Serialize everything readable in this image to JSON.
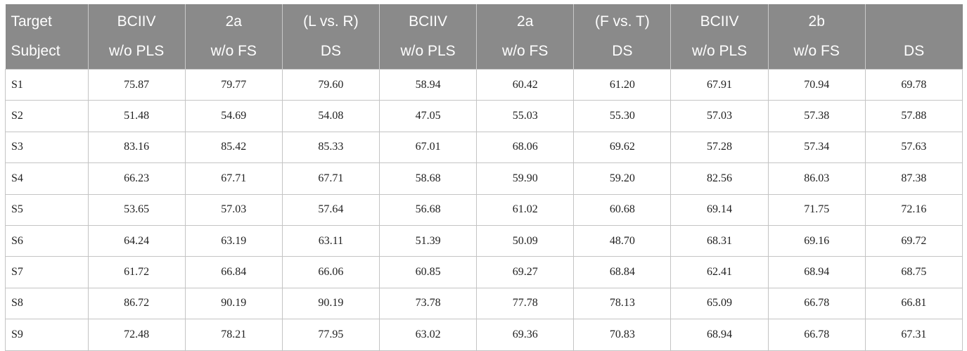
{
  "table": {
    "header_row1": [
      "Target",
      "BCIIV",
      "2a",
      "(L vs. R)",
      "BCIIV",
      "2a",
      "(F vs. T)",
      "BCIIV",
      "2b",
      ""
    ],
    "header_row2": [
      "Subject",
      "w/o PLS",
      "w/o FS",
      "DS",
      "w/o PLS",
      "w/o FS",
      "DS",
      "w/o PLS",
      "w/o FS",
      "DS"
    ],
    "rows": [
      [
        "S1",
        "75.87",
        "79.77",
        "79.60",
        "58.94",
        "60.42",
        "61.20",
        "67.91",
        "70.94",
        "69.78"
      ],
      [
        "S2",
        "51.48",
        "54.69",
        "54.08",
        "47.05",
        "55.03",
        "55.30",
        "57.03",
        "57.38",
        "57.88"
      ],
      [
        "S3",
        "83.16",
        "85.42",
        "85.33",
        "67.01",
        "68.06",
        "69.62",
        "57.28",
        "57.34",
        "57.63"
      ],
      [
        "S4",
        "66.23",
        "67.71",
        "67.71",
        "58.68",
        "59.90",
        "59.20",
        "82.56",
        "86.03",
        "87.38"
      ],
      [
        "S5",
        "53.65",
        "57.03",
        "57.64",
        "56.68",
        "61.02",
        "60.68",
        "69.14",
        "71.75",
        "72.16"
      ],
      [
        "S6",
        "64.24",
        "63.19",
        "63.11",
        "51.39",
        "50.09",
        "48.70",
        "68.31",
        "69.16",
        "69.72"
      ],
      [
        "S7",
        "61.72",
        "66.84",
        "66.06",
        "60.85",
        "69.27",
        "68.84",
        "62.41",
        "68.94",
        "68.75"
      ],
      [
        "S8",
        "86.72",
        "90.19",
        "90.19",
        "73.78",
        "77.78",
        "78.13",
        "65.09",
        "66.78",
        "66.81"
      ],
      [
        "S9",
        "72.48",
        "78.21",
        "77.95",
        "63.02",
        "69.36",
        "70.83",
        "68.94",
        "66.78",
        "67.31"
      ]
    ]
  }
}
